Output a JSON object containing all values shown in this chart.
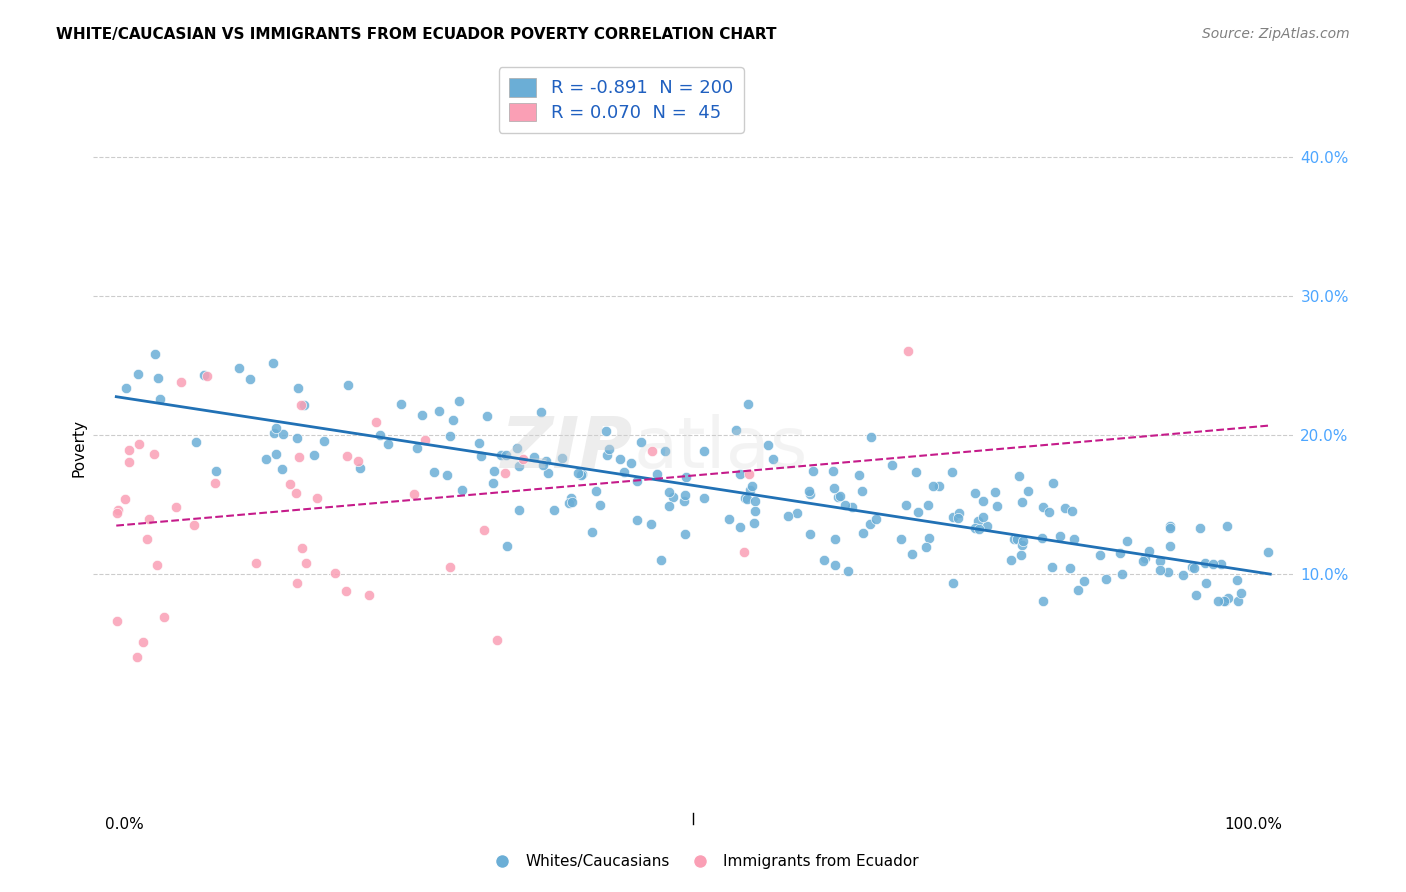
{
  "title": "WHITE/CAUCASIAN VS IMMIGRANTS FROM ECUADOR POVERTY CORRELATION CHART",
  "source": "Source: ZipAtlas.com",
  "ylabel": "Poverty",
  "legend_label1": "Whites/Caucasians",
  "legend_label2": "Immigrants from Ecuador",
  "R1": "-0.891",
  "N1": "200",
  "R2": "0.070",
  "N2": "45",
  "blue_color": "#6baed6",
  "pink_color": "#fa9fb5",
  "blue_line_color": "#2171b5",
  "pink_line_color": "#c51b8a",
  "watermark_zip": "ZIP",
  "watermark_atlas": "atlas",
  "background_color": "#ffffff",
  "grid_color": "#cccccc",
  "xlim": [
    -0.02,
    1.02
  ],
  "ylim": [
    -0.08,
    0.46
  ]
}
